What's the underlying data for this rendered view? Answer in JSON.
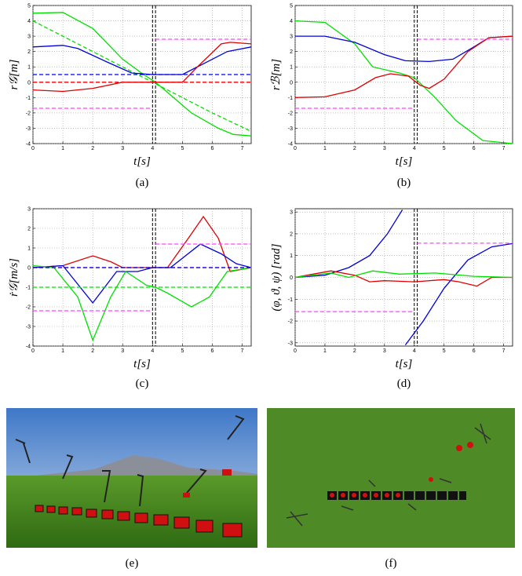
{
  "chart_data": [
    {
      "type": "line",
      "caption": "(a)",
      "xlabel": "t[s]",
      "ylabel": "r𝒢[m]",
      "xlim": [
        0,
        7.3
      ],
      "xticks": [
        0,
        1,
        2,
        3,
        4,
        5,
        6,
        7
      ],
      "ylim": [
        -4,
        5
      ],
      "yticks": [
        -4,
        -3,
        -2,
        -1,
        0,
        1,
        2,
        3,
        4,
        5
      ],
      "grid": true,
      "vlines": [
        4.0,
        4.1
      ],
      "series": [
        {
          "color": "#00e000",
          "dash": false,
          "x": [
            0,
            1,
            2,
            3,
            3.7,
            4.1,
            4.7,
            5.3,
            6.2,
            6.7,
            7.3
          ],
          "values": [
            4.5,
            4.55,
            3.5,
            1.5,
            0.5,
            0,
            -1,
            -2,
            -3,
            -3.4,
            -3.5
          ]
        },
        {
          "color": "#00e000",
          "dash": true,
          "x": [
            0,
            2,
            4,
            6,
            7.3
          ],
          "values": [
            4,
            2,
            0,
            -2,
            -3.2
          ]
        },
        {
          "color": "#0000dd",
          "dash": false,
          "x": [
            0,
            1,
            1.5,
            2.5,
            3.3,
            4,
            5,
            5.7,
            6.5,
            7.3
          ],
          "values": [
            2.3,
            2.4,
            2.2,
            1.3,
            0.6,
            0.5,
            0.5,
            1.2,
            2.0,
            2.3
          ]
        },
        {
          "color": "#e00000",
          "dash": false,
          "x": [
            0,
            1,
            2,
            3,
            4,
            5,
            5.5,
            6.3,
            6.6,
            7.3
          ],
          "values": [
            -0.5,
            -0.6,
            -0.4,
            0,
            0,
            0,
            1.0,
            2.5,
            2.6,
            2.5
          ]
        },
        {
          "color": "#0000dd",
          "dash": true,
          "x": [
            0,
            7.3
          ],
          "values": [
            0.5,
            0.5
          ]
        },
        {
          "color": "#e00000",
          "dash": true,
          "x": [
            0,
            7.3
          ],
          "values": [
            0,
            0
          ]
        },
        {
          "color": "#ff44ff",
          "dash": true,
          "x": [
            0,
            4,
            4.1,
            4.1,
            7.3
          ],
          "values": [
            -1.7,
            -1.7,
            null,
            2.8,
            2.8
          ]
        }
      ]
    },
    {
      "type": "line",
      "caption": "(b)",
      "xlabel": "t[s]",
      "ylabel": "rℬ[m]",
      "xlim": [
        0,
        7.3
      ],
      "xticks": [
        0,
        1,
        2,
        3,
        4,
        5,
        6,
        7
      ],
      "ylim": [
        -4,
        5
      ],
      "yticks": [
        -4,
        -3,
        -2,
        -1,
        0,
        1,
        2,
        3,
        4,
        5
      ],
      "grid": true,
      "vlines": [
        4.0,
        4.1
      ],
      "series": [
        {
          "color": "#00e000",
          "dash": false,
          "x": [
            0,
            1,
            2,
            2.6,
            3.5,
            4,
            4.7,
            5.4,
            6.3,
            7.3
          ],
          "values": [
            4,
            3.9,
            2.5,
            1,
            0.6,
            0.3,
            -1,
            -2.5,
            -3.8,
            -4
          ]
        },
        {
          "color": "#0000dd",
          "dash": false,
          "x": [
            0,
            1,
            2,
            3,
            3.7,
            4.5,
            5.3,
            6,
            6.5,
            7.3
          ],
          "values": [
            3,
            3,
            2.6,
            1.8,
            1.4,
            1.35,
            1.5,
            2.3,
            2.9,
            3
          ]
        },
        {
          "color": "#e00000",
          "dash": false,
          "x": [
            0,
            1,
            2,
            2.7,
            3.2,
            3.8,
            4.2,
            4.5,
            5,
            5.8,
            6.5,
            7.3
          ],
          "values": [
            -1,
            -0.95,
            -0.5,
            0.3,
            0.55,
            0.4,
            -0.2,
            -0.4,
            0.2,
            2.0,
            2.9,
            3
          ]
        },
        {
          "color": "#ff44ff",
          "dash": true,
          "x": [
            0,
            4,
            4.1,
            4.1,
            7.3
          ],
          "values": [
            -1.7,
            -1.7,
            null,
            2.8,
            2.8
          ]
        }
      ]
    },
    {
      "type": "line",
      "caption": "(c)",
      "xlabel": "t[s]",
      "ylabel": "ṙ𝒢[m/s]",
      "xlim": [
        0,
        7.3
      ],
      "xticks": [
        0,
        1,
        2,
        3,
        4,
        5,
        6,
        7
      ],
      "ylim": [
        -4,
        3
      ],
      "yticks": [
        -4,
        -3,
        -2,
        -1,
        0,
        1,
        2,
        3
      ],
      "grid": true,
      "vlines": [
        4.0,
        4.1
      ],
      "series": [
        {
          "color": "#e00000",
          "dash": false,
          "x": [
            0,
            1,
            2,
            2.6,
            3,
            4,
            4.5,
            5.2,
            5.7,
            6.2,
            6.6,
            7.3
          ],
          "values": [
            0,
            0.1,
            0.6,
            0.3,
            0,
            0,
            0,
            1.5,
            2.6,
            1.5,
            -0.2,
            0
          ]
        },
        {
          "color": "#0000dd",
          "dash": false,
          "x": [
            0,
            1,
            2,
            2.8,
            3.5,
            4,
            4.6,
            5.6,
            6.3,
            6.8,
            7.3
          ],
          "values": [
            0,
            0.1,
            -1.8,
            -0.2,
            -0.2,
            0,
            0,
            1.2,
            0.7,
            0.2,
            0
          ]
        },
        {
          "color": "#00e000",
          "dash": false,
          "x": [
            0,
            0.7,
            1.5,
            2,
            2.6,
            3.1,
            3.8,
            4.1,
            4.5,
            5.3,
            5.9,
            6.5,
            7.3
          ],
          "values": [
            0.1,
            0,
            -1.5,
            -3.7,
            -1.5,
            -0.2,
            -0.9,
            -1.0,
            -1.3,
            -2.0,
            -1.5,
            -0.2,
            0
          ]
        },
        {
          "color": "#00e000",
          "dash": true,
          "x": [
            0,
            7.3
          ],
          "values": [
            -1,
            -1
          ]
        },
        {
          "color": "#e00000",
          "dash": true,
          "x": [
            0,
            7.3
          ],
          "values": [
            0,
            0
          ]
        },
        {
          "color": "#0000dd",
          "dash": true,
          "x": [
            0,
            7.3
          ],
          "values": [
            0,
            0
          ]
        },
        {
          "color": "#ff44ff",
          "dash": true,
          "x": [
            0,
            4,
            4.1,
            4.1,
            7.3
          ],
          "values": [
            -2.2,
            -2.2,
            null,
            1.2,
            1.2
          ]
        }
      ]
    },
    {
      "type": "line",
      "caption": "(d)",
      "xlabel": "t[s]",
      "ylabel": "(φ, ϑ, ψ) [rad]",
      "xlim": [
        0,
        7.3
      ],
      "xticks": [
        0,
        1,
        2,
        3,
        4,
        5,
        6,
        7
      ],
      "ylim": [
        -3.15,
        3.15
      ],
      "yticks": [
        -3,
        -2,
        -1,
        0,
        1,
        2,
        3
      ],
      "grid": true,
      "vlines": [
        4.0,
        4.1
      ],
      "series": [
        {
          "color": "#0000dd",
          "dash": false,
          "x": [
            0,
            1,
            1.8,
            2.5,
            3.1,
            3.6,
            3.65,
            3.7,
            4.3,
            5,
            5.8,
            6.6,
            7.3
          ],
          "values": [
            0,
            0.1,
            0.45,
            1.0,
            2.0,
            3.1,
            null,
            -3.1,
            -2,
            -0.5,
            0.8,
            1.4,
            1.55
          ]
        },
        {
          "color": "#e00000",
          "dash": false,
          "x": [
            0,
            1.2,
            2,
            2.5,
            3,
            4,
            5,
            5.5,
            6.1,
            6.6,
            7.3
          ],
          "values": [
            0,
            0.3,
            0.1,
            -0.2,
            -0.15,
            -0.2,
            -0.1,
            -0.2,
            -0.4,
            0,
            0
          ]
        },
        {
          "color": "#00e000",
          "dash": false,
          "x": [
            0,
            1.2,
            1.8,
            2.6,
            3.5,
            4.7,
            6,
            7.3
          ],
          "values": [
            0,
            0.2,
            0,
            0.3,
            0.15,
            0.2,
            0.05,
            0
          ]
        },
        {
          "color": "#ff44ff",
          "dash": true,
          "x": [
            0,
            4,
            4.1,
            4.1,
            7.3
          ],
          "values": [
            -1.57,
            -1.57,
            null,
            1.57,
            1.57
          ]
        }
      ]
    }
  ],
  "images": [
    {
      "caption": "(e)"
    },
    {
      "caption": "(f)"
    }
  ]
}
